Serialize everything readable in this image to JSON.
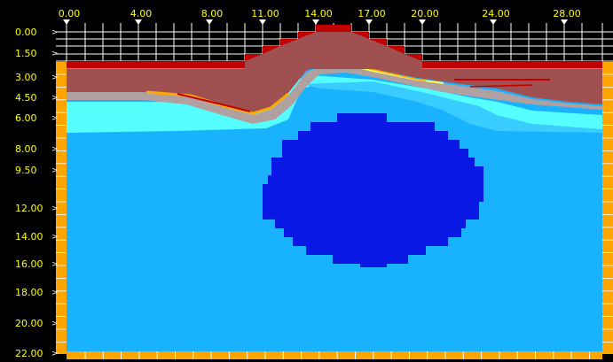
{
  "viewer": {
    "top_axis": {
      "labels": [
        "0.00",
        "4.00",
        "8.00",
        "11.00",
        "14.00",
        "17.00",
        "20.00",
        "24.00",
        "28.00"
      ]
    },
    "left_axis": {
      "labels": [
        "0.00",
        "1.50",
        "3.00",
        "4.50",
        "6.00",
        "8.00",
        "9.50",
        "12.00",
        "14.00",
        "16.00",
        "18.00",
        "20.00",
        "22.00"
      ]
    },
    "colors": {
      "background": "#000000",
      "tick_text": "#ffff00",
      "frame": "#ffa500",
      "grid": "#ffffff",
      "deep_water": "#19b2ff",
      "light_cyan": "#55ffff",
      "mid_cyan": "#39ccff",
      "blob": "#0a18e6",
      "ground": "#a05050",
      "ground_dark": "#c00000",
      "edge_orange": "#ffaa00",
      "edge_yellow": "#ffff55",
      "edge_gray": "#b0a0a0"
    }
  }
}
